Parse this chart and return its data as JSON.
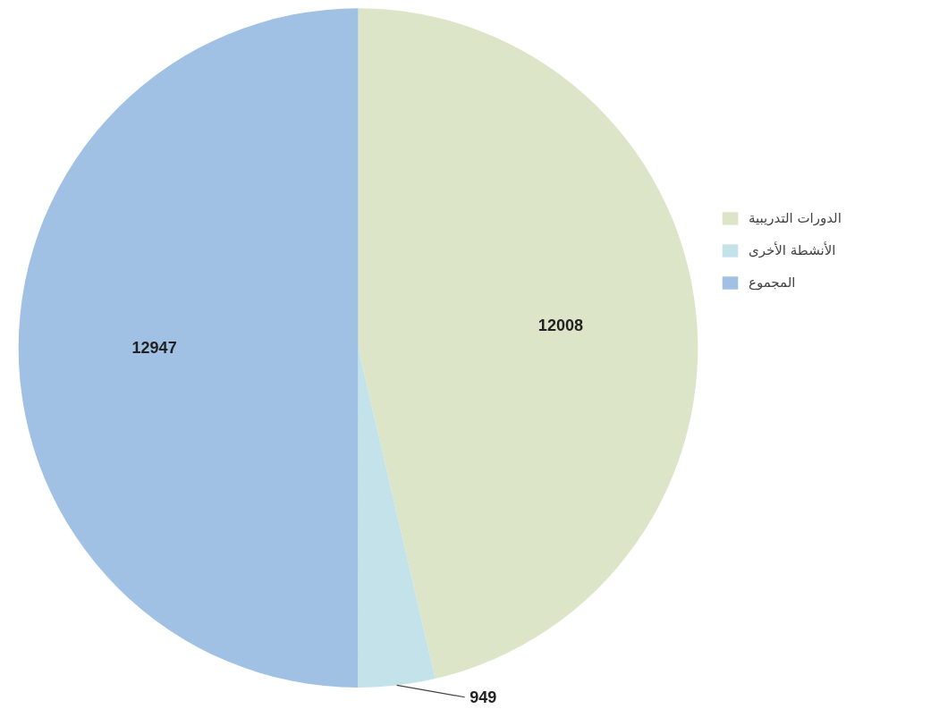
{
  "chart_data": {
    "type": "pie",
    "categories": [
      "الدورات التدريبية",
      "الأنشطة الأخرى",
      "المجموع"
    ],
    "values": [
      12008,
      949,
      12947
    ],
    "colors": [
      "#dde5c8",
      "#c3e2ea",
      "#a0c0e4"
    ],
    "data_labels": true,
    "legend": "right"
  }
}
